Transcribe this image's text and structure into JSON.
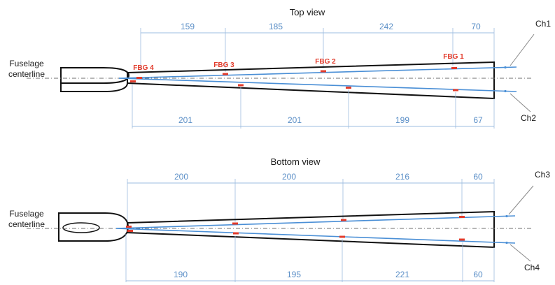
{
  "top_view": {
    "title": "Top view",
    "fuselage_label": [
      "Fuselage",
      "centerline"
    ],
    "sensors": [
      "FBG 4",
      "FBG 3",
      "FBG 2",
      "FBG 1"
    ],
    "channels": {
      "upper": "Ch1",
      "lower": "Ch2"
    },
    "dims_top": [
      "159",
      "185",
      "242",
      "70"
    ],
    "dims_bottom": [
      "201",
      "201",
      "199",
      "67"
    ]
  },
  "bottom_view": {
    "title": "Bottom view",
    "fuselage_label": [
      "Fuselage",
      "centerline"
    ],
    "channels": {
      "upper": "Ch3",
      "lower": "Ch4"
    },
    "dims_top": [
      "200",
      "200",
      "216",
      "60"
    ],
    "dims_bottom": [
      "190",
      "195",
      "221",
      "60"
    ]
  },
  "colors": {
    "fiber": "#4a8fd6",
    "fbg_marker": "#e23b2b",
    "dimension": "#5b8fc7",
    "outline": "#111111"
  }
}
